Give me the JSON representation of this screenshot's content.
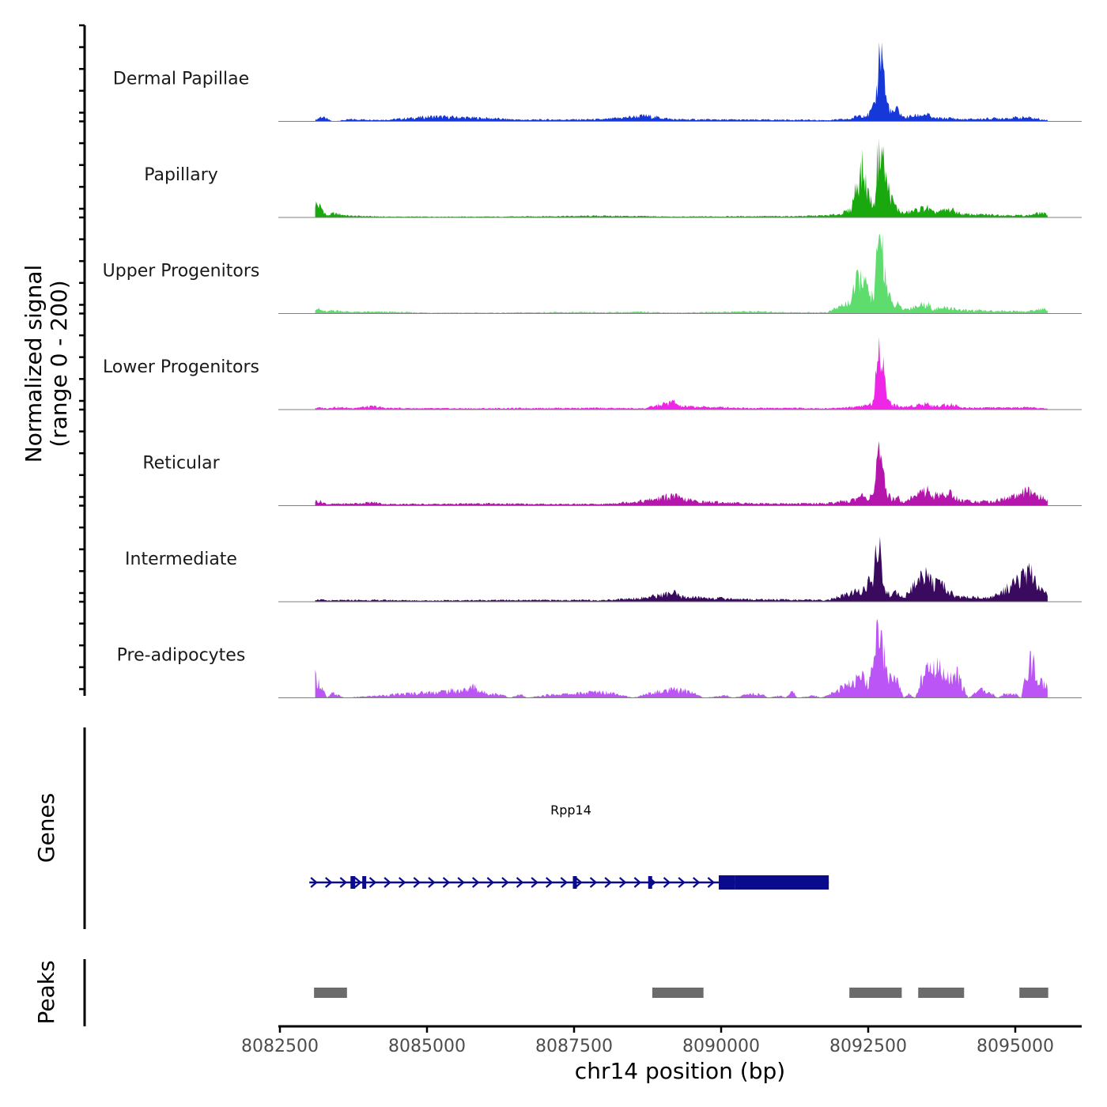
{
  "chart_data": {
    "type": "area",
    "title": "",
    "ylabel": "Normalized signal\n(range 0 - 200)",
    "ylabel_line1": "Normalized signal",
    "ylabel_line2": "(range 0 - 200)",
    "xlabel": "chr14 position (bp)",
    "chromosome": "chr14",
    "xlim": [
      8082500,
      8096300
    ],
    "ylim": [
      0,
      200
    ],
    "x_ticks": [
      8082500,
      8085000,
      8087500,
      8090000,
      8092500,
      8095000
    ],
    "x_tick_labels": [
      "8082500",
      "8085000",
      "8087500",
      "8090000",
      "8092500",
      "8095000"
    ],
    "signal_start": 8083100,
    "signal_end": 8095550,
    "tracks": [
      {
        "name": "Dermal Papillae",
        "color": "#1638d8",
        "profile": [
          [
            8083100,
            3
          ],
          [
            8083200,
            12
          ],
          [
            8083300,
            6
          ],
          [
            8083400,
            0
          ],
          [
            8083700,
            5
          ],
          [
            8084300,
            4
          ],
          [
            8085100,
            12
          ],
          [
            8086000,
            8
          ],
          [
            8086600,
            4
          ],
          [
            8088000,
            5
          ],
          [
            8088700,
            14
          ],
          [
            8089200,
            5
          ],
          [
            8090500,
            4
          ],
          [
            8091200,
            4
          ],
          [
            8091800,
            3
          ],
          [
            8092200,
            6
          ],
          [
            8092350,
            16
          ],
          [
            8092500,
            16
          ],
          [
            8092600,
            35
          ],
          [
            8092650,
            85
          ],
          [
            8092700,
            200
          ],
          [
            8092750,
            170
          ],
          [
            8092800,
            55
          ],
          [
            8092900,
            20
          ],
          [
            8093000,
            30
          ],
          [
            8093100,
            10
          ],
          [
            8093500,
            18
          ],
          [
            8093600,
            8
          ],
          [
            8093900,
            8
          ],
          [
            8094100,
            5
          ],
          [
            8095200,
            10
          ],
          [
            8095550,
            3
          ]
        ]
      },
      {
        "name": "Papillary",
        "color": "#1aa80f",
        "profile": [
          [
            8083100,
            35
          ],
          [
            8083200,
            25
          ],
          [
            8083300,
            4
          ],
          [
            8083400,
            10
          ],
          [
            8083700,
            4
          ],
          [
            8084300,
            2
          ],
          [
            8085100,
            2
          ],
          [
            8086300,
            2
          ],
          [
            8087000,
            3
          ],
          [
            8088000,
            4
          ],
          [
            8088700,
            3
          ],
          [
            8089200,
            2
          ],
          [
            8090500,
            3
          ],
          [
            8091200,
            3
          ],
          [
            8091800,
            5
          ],
          [
            8092000,
            8
          ],
          [
            8092200,
            18
          ],
          [
            8092300,
            80
          ],
          [
            8092400,
            120
          ],
          [
            8092500,
            60
          ],
          [
            8092600,
            25
          ],
          [
            8092650,
            130
          ],
          [
            8092700,
            200
          ],
          [
            8092750,
            150
          ],
          [
            8092800,
            95
          ],
          [
            8092900,
            45
          ],
          [
            8093000,
            20
          ],
          [
            8093100,
            10
          ],
          [
            8093500,
            25
          ],
          [
            8093600,
            12
          ],
          [
            8093900,
            20
          ],
          [
            8094100,
            8
          ],
          [
            8095200,
            5
          ],
          [
            8095450,
            12
          ],
          [
            8095550,
            6
          ]
        ]
      },
      {
        "name": "Upper Progenitors",
        "color": "#5fdc6e",
        "profile": [
          [
            8083100,
            15
          ],
          [
            8083200,
            8
          ],
          [
            8083300,
            4
          ],
          [
            8083400,
            8
          ],
          [
            8083700,
            4
          ],
          [
            8084300,
            4
          ],
          [
            8085100,
            2
          ],
          [
            8086300,
            2
          ],
          [
            8087000,
            3
          ],
          [
            8088000,
            3
          ],
          [
            8088700,
            4
          ],
          [
            8089200,
            2
          ],
          [
            8090500,
            5
          ],
          [
            8091200,
            3
          ],
          [
            8091800,
            3
          ],
          [
            8092000,
            16
          ],
          [
            8092200,
            30
          ],
          [
            8092300,
            75
          ],
          [
            8092400,
            100
          ],
          [
            8092500,
            50
          ],
          [
            8092600,
            40
          ],
          [
            8092650,
            140
          ],
          [
            8092700,
            200
          ],
          [
            8092750,
            175
          ],
          [
            8092800,
            80
          ],
          [
            8092900,
            22
          ],
          [
            8093000,
            22
          ],
          [
            8093100,
            10
          ],
          [
            8093500,
            25
          ],
          [
            8093600,
            12
          ],
          [
            8093900,
            14
          ],
          [
            8094100,
            8
          ],
          [
            8095200,
            5
          ],
          [
            8095450,
            12
          ],
          [
            8095550,
            6
          ]
        ]
      },
      {
        "name": "Lower Progenitors",
        "color": "#ef25e7",
        "profile": [
          [
            8083100,
            4
          ],
          [
            8083200,
            5
          ],
          [
            8083300,
            3
          ],
          [
            8083400,
            6
          ],
          [
            8083700,
            4
          ],
          [
            8084100,
            8
          ],
          [
            8084300,
            4
          ],
          [
            8085100,
            3
          ],
          [
            8086000,
            3
          ],
          [
            8087000,
            4
          ],
          [
            8088000,
            4
          ],
          [
            8088700,
            3
          ],
          [
            8089200,
            20
          ],
          [
            8089300,
            8
          ],
          [
            8090500,
            4
          ],
          [
            8091200,
            4
          ],
          [
            8091800,
            3
          ],
          [
            8092200,
            6
          ],
          [
            8092400,
            10
          ],
          [
            8092500,
            12
          ],
          [
            8092600,
            20
          ],
          [
            8092650,
            120
          ],
          [
            8092700,
            170
          ],
          [
            8092750,
            160
          ],
          [
            8092800,
            40
          ],
          [
            8092900,
            12
          ],
          [
            8093000,
            10
          ],
          [
            8093100,
            6
          ],
          [
            8093500,
            16
          ],
          [
            8093600,
            8
          ],
          [
            8093900,
            14
          ],
          [
            8094100,
            5
          ],
          [
            8095200,
            5
          ],
          [
            8095550,
            3
          ]
        ]
      },
      {
        "name": "Reticular",
        "color": "#b415ab",
        "profile": [
          [
            8083100,
            12
          ],
          [
            8083200,
            10
          ],
          [
            8083300,
            4
          ],
          [
            8083700,
            5
          ],
          [
            8084100,
            8
          ],
          [
            8084300,
            4
          ],
          [
            8085100,
            4
          ],
          [
            8086000,
            5
          ],
          [
            8087000,
            4
          ],
          [
            8088000,
            4
          ],
          [
            8088700,
            12
          ],
          [
            8089200,
            25
          ],
          [
            8089300,
            18
          ],
          [
            8089600,
            10
          ],
          [
            8090500,
            6
          ],
          [
            8091200,
            5
          ],
          [
            8091800,
            6
          ],
          [
            8092200,
            12
          ],
          [
            8092400,
            25
          ],
          [
            8092500,
            18
          ],
          [
            8092600,
            40
          ],
          [
            8092650,
            100
          ],
          [
            8092700,
            120
          ],
          [
            8092750,
            80
          ],
          [
            8092800,
            35
          ],
          [
            8092900,
            18
          ],
          [
            8093000,
            20
          ],
          [
            8093100,
            10
          ],
          [
            8093500,
            40
          ],
          [
            8093600,
            25
          ],
          [
            8093900,
            30
          ],
          [
            8094100,
            12
          ],
          [
            8094600,
            10
          ],
          [
            8095000,
            25
          ],
          [
            8095200,
            35
          ],
          [
            8095450,
            20
          ],
          [
            8095550,
            12
          ]
        ]
      },
      {
        "name": "Intermediate",
        "color": "#3a0a5e",
        "profile": [
          [
            8083100,
            6
          ],
          [
            8083200,
            5
          ],
          [
            8083300,
            3
          ],
          [
            8083700,
            4
          ],
          [
            8084300,
            4
          ],
          [
            8085100,
            3
          ],
          [
            8086000,
            4
          ],
          [
            8087000,
            4
          ],
          [
            8088000,
            4
          ],
          [
            8088700,
            10
          ],
          [
            8089200,
            22
          ],
          [
            8089300,
            12
          ],
          [
            8090500,
            6
          ],
          [
            8091200,
            5
          ],
          [
            8091800,
            4
          ],
          [
            8092200,
            20
          ],
          [
            8092400,
            30
          ],
          [
            8092600,
            60
          ],
          [
            8092650,
            140
          ],
          [
            8092700,
            120
          ],
          [
            8092750,
            55
          ],
          [
            8092800,
            25
          ],
          [
            8092900,
            15
          ],
          [
            8093000,
            25
          ],
          [
            8093100,
            8
          ],
          [
            8093500,
            80
          ],
          [
            8093600,
            45
          ],
          [
            8093800,
            35
          ],
          [
            8094000,
            12
          ],
          [
            8094600,
            10
          ],
          [
            8095000,
            45
          ],
          [
            8095200,
            70
          ],
          [
            8095300,
            65
          ],
          [
            8095450,
            30
          ],
          [
            8095550,
            18
          ]
        ]
      },
      {
        "name": "Pre-adipocytes",
        "color": "#bc55f5",
        "profile": [
          [
            8083100,
            50
          ],
          [
            8083200,
            30
          ],
          [
            8083300,
            0
          ],
          [
            8083400,
            12
          ],
          [
            8083500,
            6
          ],
          [
            8083600,
            0
          ],
          [
            8085700,
            20
          ],
          [
            8085800,
            30
          ],
          [
            8085900,
            15
          ],
          [
            8086100,
            10
          ],
          [
            8086300,
            8
          ],
          [
            8086400,
            0
          ],
          [
            8086600,
            8
          ],
          [
            8086700,
            0
          ],
          [
            8087100,
            8
          ],
          [
            8087500,
            10
          ],
          [
            8087900,
            15
          ],
          [
            8088200,
            12
          ],
          [
            8088500,
            0
          ],
          [
            8088800,
            12
          ],
          [
            8089200,
            20
          ],
          [
            8089500,
            15
          ],
          [
            8089700,
            0
          ],
          [
            8090100,
            6
          ],
          [
            8090200,
            0
          ],
          [
            8090500,
            10
          ],
          [
            8090700,
            8
          ],
          [
            8090800,
            0
          ],
          [
            8091000,
            6
          ],
          [
            8091100,
            0
          ],
          [
            8091200,
            20
          ],
          [
            8091300,
            0
          ],
          [
            8091600,
            6
          ],
          [
            8091700,
            0
          ],
          [
            8092400,
            50
          ],
          [
            8092500,
            30
          ],
          [
            8092600,
            80
          ],
          [
            8092650,
            170
          ],
          [
            8092700,
            200
          ],
          [
            8092750,
            140
          ],
          [
            8092800,
            60
          ],
          [
            8092900,
            55
          ],
          [
            8093000,
            40
          ],
          [
            8093100,
            0
          ],
          [
            8093200,
            10
          ],
          [
            8093300,
            0
          ],
          [
            8093400,
            45
          ],
          [
            8093500,
            70
          ],
          [
            8093700,
            75
          ],
          [
            8093900,
            50
          ],
          [
            8094000,
            65
          ],
          [
            8094100,
            30
          ],
          [
            8094200,
            0
          ],
          [
            8094400,
            20
          ],
          [
            8094600,
            10
          ],
          [
            8094700,
            0
          ],
          [
            8094800,
            8
          ],
          [
            8095000,
            10
          ],
          [
            8095100,
            0
          ],
          [
            8095200,
            65
          ],
          [
            8095300,
            100
          ],
          [
            8095400,
            40
          ],
          [
            8095550,
            30
          ]
        ]
      }
    ],
    "genes": {
      "label": "Genes",
      "gene_name": "Rpp14",
      "color": "#0a0a8c",
      "strand": "+",
      "start": 8083000,
      "end": 8091830,
      "exons": [
        {
          "start": 8083700,
          "end": 8083780
        },
        {
          "start": 8083900,
          "end": 8083960
        },
        {
          "start": 8087480,
          "end": 8087540
        },
        {
          "start": 8088760,
          "end": 8088820
        },
        {
          "start": 8089960,
          "end": 8090230
        },
        {
          "start": 8090230,
          "end": 8091830
        }
      ]
    },
    "peaks": {
      "label": "Peaks",
      "color": "#6b6b6b",
      "regions": [
        {
          "start": 8083080,
          "end": 8083640
        },
        {
          "start": 8088830,
          "end": 8089700
        },
        {
          "start": 8092180,
          "end": 8093070
        },
        {
          "start": 8093350,
          "end": 8094130
        },
        {
          "start": 8095070,
          "end": 8095560
        }
      ]
    }
  }
}
